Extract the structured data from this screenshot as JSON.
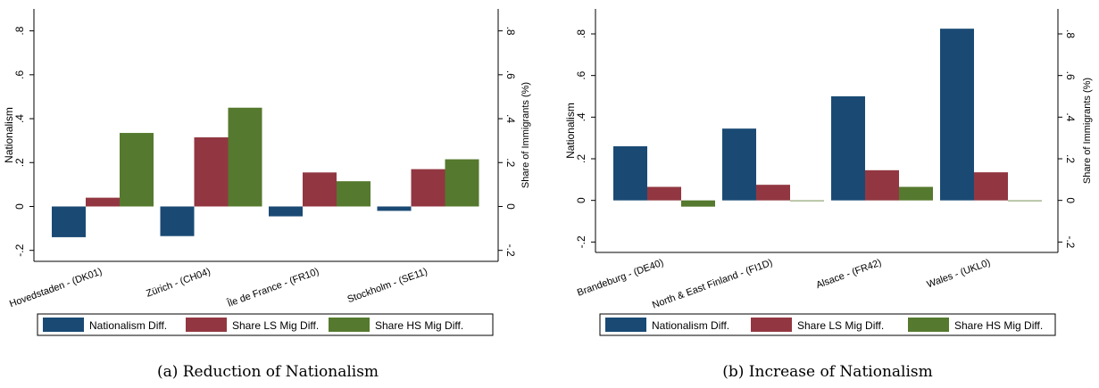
{
  "figure": {
    "captions": [
      "(a) Reduction of Nationalism",
      "(b) Increase of Nationalism"
    ]
  },
  "colors": {
    "nationalism": "#1a4a74",
    "ls": "#923741",
    "hs": "#55792e",
    "axis": "#000000"
  },
  "chart_data": [
    {
      "type": "bar",
      "title": "",
      "categories": [
        "Hovedstaden - (DK01)",
        "Zürich - (CH04)",
        "Île de France - (FR10)",
        "Stockholm - (SE11)"
      ],
      "series": [
        {
          "name": "Nationalism Diff.",
          "values": [
            -0.14,
            -0.135,
            -0.045,
            -0.02
          ]
        },
        {
          "name": "Share LS Mig Diff.",
          "values": [
            0.04,
            0.315,
            0.155,
            0.17
          ]
        },
        {
          "name": "Share HS Mig Diff.",
          "values": [
            0.335,
            0.45,
            0.115,
            0.215
          ]
        }
      ],
      "ylabel": "Nationalism",
      "y2label": "Share of Immigrants (%)",
      "ylim": [
        -0.25,
        0.9
      ],
      "yticks": [
        -0.2,
        0,
        0.2,
        0.4,
        0.6,
        0.8
      ],
      "yticklabels": [
        "-.2",
        "0",
        ".2",
        ".4",
        ".6",
        ".8"
      ],
      "legend_position": "bottom",
      "grid": false
    },
    {
      "type": "bar",
      "title": "",
      "categories": [
        "Brandeburg - (DE40)",
        "North & East Finland - (FI1D)",
        "Alsace - (FR42)",
        "Wales - (UKL0)"
      ],
      "series": [
        {
          "name": "Nationalism Diff.",
          "values": [
            0.26,
            0.345,
            0.5,
            0.825
          ]
        },
        {
          "name": "Share LS Mig Diff.",
          "values": [
            0.065,
            0.075,
            0.145,
            0.135
          ]
        },
        {
          "name": "Share HS Mig Diff.",
          "values": [
            -0.03,
            -0.003,
            0.065,
            -0.003
          ]
        }
      ],
      "ylabel": "Nationalism",
      "y2label": "Share of Immigrants (%)",
      "ylim": [
        -0.25,
        0.92
      ],
      "yticks": [
        -0.2,
        0,
        0.2,
        0.4,
        0.6,
        0.8
      ],
      "yticklabels": [
        "-.2",
        "0",
        ".2",
        ".4",
        ".6",
        ".8"
      ],
      "legend_position": "bottom",
      "grid": false
    }
  ]
}
